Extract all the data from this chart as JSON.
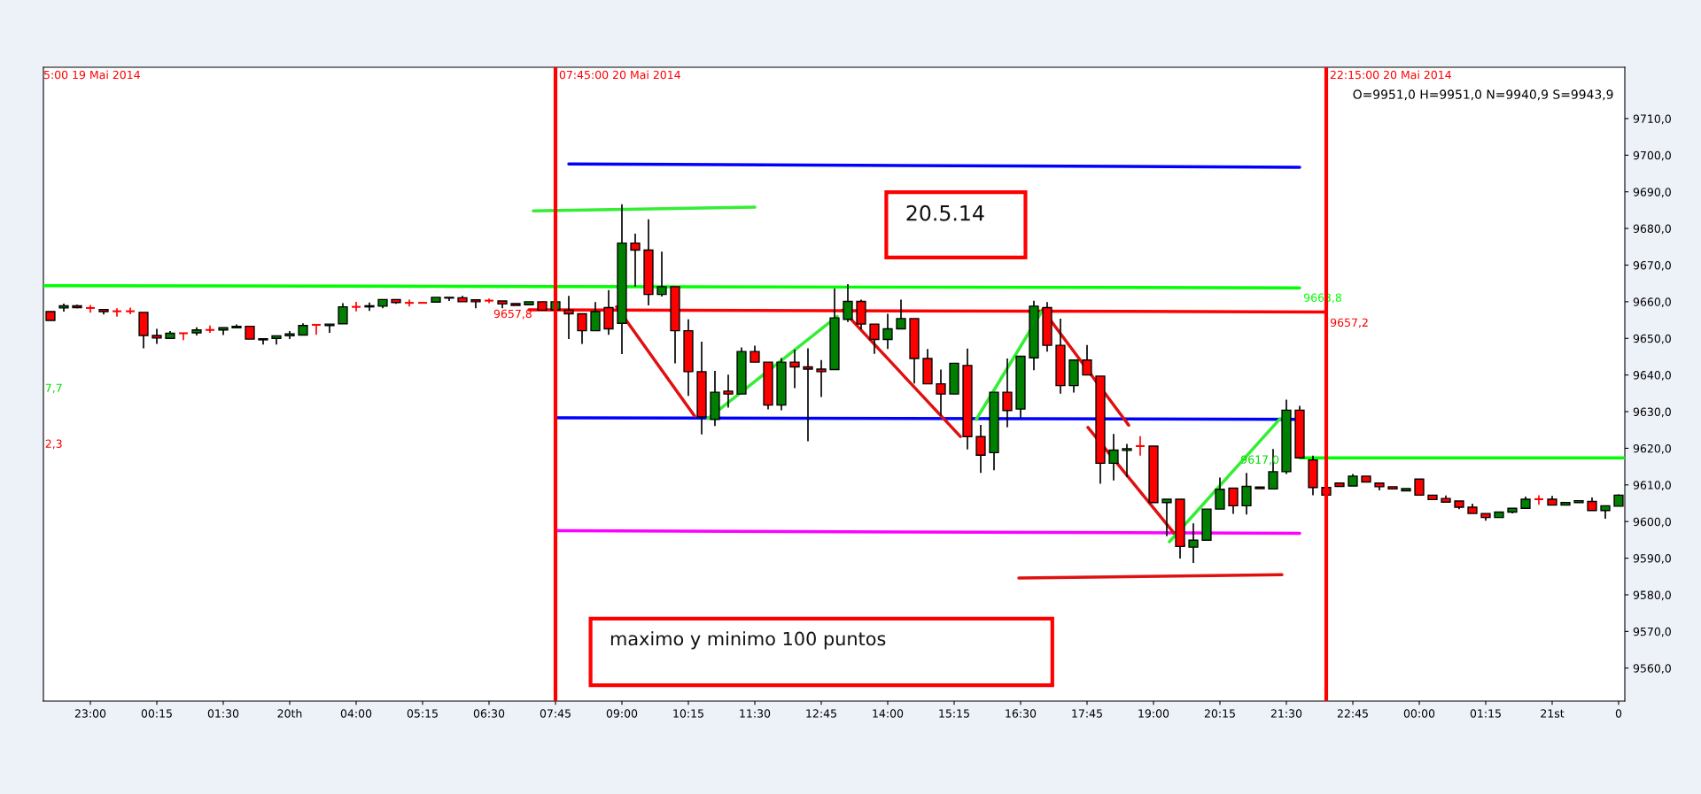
{
  "chart_data": {
    "type": "candlestick",
    "title": "O=9951,0 H=9951,0 N=9940,9 S=9943,9",
    "x": [
      "2014-05-19T22:15",
      "2014-05-19T22:30",
      "2014-05-19T22:45",
      "2014-05-19T23:00",
      "2014-05-19T23:15",
      "2014-05-19T23:30",
      "2014-05-19T23:45",
      "2014-05-20T00:00",
      "2014-05-20T00:15",
      "2014-05-20T00:30",
      "2014-05-20T00:45",
      "2014-05-20T01:00",
      "2014-05-20T01:15",
      "2014-05-20T01:30",
      "2014-05-20T01:45",
      "2014-05-20T02:00",
      "2014-05-20T02:15",
      "2014-05-20T02:30",
      "2014-05-20T02:45",
      "2014-05-20T03:00",
      "2014-05-20T03:15",
      "2014-05-20T03:30",
      "2014-05-20T03:45",
      "2014-05-20T04:00",
      "2014-05-20T04:15",
      "2014-05-20T04:30",
      "2014-05-20T04:45",
      "2014-05-20T05:00",
      "2014-05-20T05:15",
      "2014-05-20T05:30",
      "2014-05-20T05:45",
      "2014-05-20T06:00",
      "2014-05-20T06:15",
      "2014-05-20T06:30",
      "2014-05-20T06:45",
      "2014-05-20T07:00",
      "2014-05-20T07:15",
      "2014-05-20T07:30",
      "2014-05-20T07:45",
      "2014-05-20T08:00",
      "2014-05-20T08:15",
      "2014-05-20T08:30",
      "2014-05-20T08:45",
      "2014-05-20T09:00",
      "2014-05-20T09:15",
      "2014-05-20T09:30",
      "2014-05-20T09:45",
      "2014-05-20T10:00",
      "2014-05-20T10:15",
      "2014-05-20T10:30",
      "2014-05-20T10:45",
      "2014-05-20T11:00",
      "2014-05-20T11:15",
      "2014-05-20T11:30",
      "2014-05-20T11:45",
      "2014-05-20T12:00",
      "2014-05-20T12:15",
      "2014-05-20T12:30",
      "2014-05-20T12:45",
      "2014-05-20T13:00",
      "2014-05-20T13:15",
      "2014-05-20T13:30",
      "2014-05-20T13:45",
      "2014-05-20T14:00",
      "2014-05-20T14:15",
      "2014-05-20T14:30",
      "2014-05-20T14:45",
      "2014-05-20T15:00",
      "2014-05-20T15:15",
      "2014-05-20T15:30",
      "2014-05-20T15:45",
      "2014-05-20T16:00",
      "2014-05-20T16:15",
      "2014-05-20T16:30",
      "2014-05-20T16:45",
      "2014-05-20T17:00",
      "2014-05-20T17:15",
      "2014-05-20T17:30",
      "2014-05-20T17:45",
      "2014-05-20T18:00",
      "2014-05-20T18:15",
      "2014-05-20T18:30",
      "2014-05-20T18:45",
      "2014-05-20T19:00",
      "2014-05-20T19:15",
      "2014-05-20T19:30",
      "2014-05-20T19:45",
      "2014-05-20T20:00",
      "2014-05-20T20:15",
      "2014-05-20T20:30",
      "2014-05-20T20:45",
      "2014-05-20T21:00",
      "2014-05-20T21:15",
      "2014-05-20T21:30",
      "2014-05-20T21:45",
      "2014-05-20T22:00",
      "2014-05-20T22:15",
      "2014-05-20T22:30",
      "2014-05-20T22:45",
      "2014-05-20T23:00",
      "2014-05-20T23:15",
      "2014-05-20T23:30",
      "2014-05-20T23:45",
      "2014-05-21T00:00",
      "2014-05-21T00:15",
      "2014-05-21T00:30",
      "2014-05-21T00:45",
      "2014-05-21T01:00",
      "2014-05-21T01:15",
      "2014-05-21T01:30",
      "2014-05-21T01:45",
      "2014-05-21T02:00",
      "2014-05-21T02:15",
      "2014-05-21T02:30",
      "2014-05-21T02:45",
      "2014-05-21T03:00",
      "2014-05-21T03:15",
      "2014-05-21T03:30",
      "2014-05-21T03:45"
    ],
    "ohlc": [
      [
        9657.3,
        9657.3,
        9654.9,
        9654.9
      ],
      [
        9658.3,
        9659.5,
        9657.3,
        9658.9
      ],
      [
        9658.9,
        9659.2,
        9658.2,
        9658.4
      ],
      [
        9658.3,
        9659.1,
        9657.0,
        9658.3
      ],
      [
        9657.9,
        9657.9,
        9656.5,
        9657.3
      ],
      [
        9657.4,
        9658.2,
        9655.9,
        9657.4
      ],
      [
        9657.4,
        9658.4,
        9656.6,
        9657.4
      ],
      [
        9657.1,
        9657.1,
        9647.3,
        9650.8
      ],
      [
        9650.8,
        9652.6,
        9648.5,
        9650.1
      ],
      [
        9650.0,
        9652.0,
        9649.8,
        9651.4
      ],
      [
        9651.4,
        9651.4,
        9649.5,
        9651.4
      ],
      [
        9651.5,
        9653.0,
        9650.8,
        9652.3
      ],
      [
        9652.3,
        9653.5,
        9651.5,
        9652.3
      ],
      [
        9652.3,
        9652.9,
        9650.9,
        9652.9
      ],
      [
        9652.9,
        9653.8,
        9652.9,
        9653.3
      ],
      [
        9653.3,
        9653.3,
        9649.8,
        9649.8
      ],
      [
        9649.9,
        9649.9,
        9648.3,
        9649.6
      ],
      [
        9650.0,
        9650.7,
        9648.3,
        9650.7
      ],
      [
        9650.7,
        9652.0,
        9649.8,
        9651.2
      ],
      [
        9650.9,
        9654.1,
        9650.9,
        9653.5
      ],
      [
        9653.7,
        9653.7,
        9651.0,
        9653.7
      ],
      [
        9653.5,
        9653.9,
        9651.5,
        9653.9
      ],
      [
        9654.0,
        9659.6,
        9654.0,
        9658.6
      ],
      [
        9658.6,
        9660.0,
        9657.4,
        9658.6
      ],
      [
        9658.6,
        9659.8,
        9657.5,
        9658.9
      ],
      [
        9658.8,
        9660.6,
        9658.2,
        9660.6
      ],
      [
        9660.6,
        9660.6,
        9659.4,
        9659.8
      ],
      [
        9659.7,
        9660.6,
        9658.7,
        9659.7
      ],
      [
        9659.7,
        9659.7,
        9659.7,
        9659.7
      ],
      [
        9659.9,
        9661.2,
        9659.9,
        9661.2
      ],
      [
        9661.0,
        9661.2,
        9660.2,
        9661.2
      ],
      [
        9661.1,
        9661.6,
        9660.0,
        9660.0
      ],
      [
        9660.5,
        9660.5,
        9658.2,
        9660.0
      ],
      [
        9660.3,
        9660.9,
        9659.6,
        9660.3
      ],
      [
        9660.2,
        9660.2,
        9658.2,
        9659.4
      ],
      [
        9659.5,
        9659.5,
        9659.0,
        9659.0
      ],
      [
        9659.2,
        9660.0,
        9659.2,
        9660.0
      ],
      [
        9660.0,
        9660.0,
        9657.6,
        9657.7
      ],
      [
        9657.8,
        9660.0,
        9657.8,
        9660.0
      ],
      [
        9657.7,
        9661.6,
        9649.8,
        9656.7
      ],
      [
        9656.7,
        9656.7,
        9648.5,
        9652.1
      ],
      [
        9652.1,
        9659.9,
        9652.1,
        9657.3
      ],
      [
        9658.4,
        9663.2,
        9651.0,
        9652.6
      ],
      [
        9654.1,
        9686.6,
        9645.7,
        9676.0
      ],
      [
        9676.0,
        9678.6,
        9664.2,
        9674.1
      ],
      [
        9674.1,
        9682.5,
        9659.0,
        9662.0
      ],
      [
        9662.0,
        9673.7,
        9661.4,
        9664.1
      ],
      [
        9664.1,
        9664.1,
        9643.2,
        9652.1
      ],
      [
        9652.1,
        9655.2,
        9634.3,
        9640.9
      ],
      [
        9640.9,
        9649.1,
        9623.8,
        9628.6
      ],
      [
        9627.9,
        9641.1,
        9626.1,
        9635.3
      ],
      [
        9635.6,
        9640.1,
        9631.1,
        9634.8
      ],
      [
        9634.8,
        9647.5,
        9634.8,
        9646.4
      ],
      [
        9646.4,
        9648.0,
        9643.5,
        9643.5
      ],
      [
        9643.5,
        9643.5,
        9630.6,
        9631.8
      ],
      [
        9631.8,
        9644.6,
        9630.4,
        9643.5
      ],
      [
        9643.5,
        9646.9,
        9636.4,
        9642.2
      ],
      [
        9642.2,
        9647.3,
        9621.9,
        9641.6
      ],
      [
        9641.6,
        9644.1,
        9634.0,
        9640.9
      ],
      [
        9641.5,
        9663.6,
        9641.5,
        9655.6
      ],
      [
        9655.2,
        9664.8,
        9654.5,
        9660.1
      ],
      [
        9660.1,
        9660.6,
        9652.5,
        9653.9
      ],
      [
        9653.9,
        9653.9,
        9645.8,
        9649.7
      ],
      [
        9649.7,
        9656.7,
        9647.1,
        9652.6
      ],
      [
        9652.6,
        9660.6,
        9652.6,
        9655.4
      ],
      [
        9655.4,
        9655.4,
        9637.7,
        9644.5
      ],
      [
        9644.5,
        9647.1,
        9637.6,
        9637.6
      ],
      [
        9637.6,
        9641.5,
        9628.9,
        9634.8
      ],
      [
        9634.8,
        9643.2,
        9634.8,
        9643.2
      ],
      [
        9642.6,
        9647.2,
        9619.7,
        9623.2
      ],
      [
        9623.2,
        9626.4,
        9613.3,
        9618.1
      ],
      [
        9618.8,
        9635.3,
        9614.0,
        9635.3
      ],
      [
        9635.3,
        9644.5,
        9625.7,
        9630.3
      ],
      [
        9630.7,
        9645.1,
        9628.3,
        9645.1
      ],
      [
        9644.7,
        9660.3,
        9641.3,
        9658.8
      ],
      [
        9658.4,
        9659.9,
        9646.4,
        9648.1
      ],
      [
        9648.1,
        9655.4,
        9634.9,
        9637.1
      ],
      [
        9637.1,
        9644.1,
        9635.2,
        9644.1
      ],
      [
        9644.1,
        9648.2,
        9640.0,
        9640.0
      ],
      [
        9639.7,
        9639.7,
        9610.3,
        9615.9
      ],
      [
        9615.9,
        9623.9,
        9611.2,
        9619.5
      ],
      [
        9619.4,
        9621.2,
        9612.1,
        9619.9
      ],
      [
        9620.6,
        9623.3,
        9618.0,
        9620.6
      ],
      [
        9620.6,
        9620.6,
        9605.2,
        9605.2
      ],
      [
        9605.2,
        9606.1,
        9596.0,
        9606.1
      ],
      [
        9606.1,
        9606.1,
        9589.9,
        9593.2
      ],
      [
        9593.0,
        9599.5,
        9588.7,
        9594.9
      ],
      [
        9594.9,
        9603.4,
        9594.9,
        9603.4
      ],
      [
        9603.4,
        9612.0,
        9603.4,
        9608.8
      ],
      [
        9609.1,
        9609.1,
        9602.1,
        9604.3
      ],
      [
        9604.3,
        9613.3,
        9601.9,
        9609.6
      ],
      [
        9609.4,
        9609.4,
        9609.0,
        9609.0
      ],
      [
        9608.9,
        9619.8,
        9608.9,
        9613.6
      ],
      [
        9613.6,
        9633.3,
        9613.0,
        9630.4
      ],
      [
        9630.4,
        9631.6,
        9617.4,
        9617.4
      ],
      [
        9616.8,
        9618.0,
        9607.2,
        9609.3
      ],
      [
        9609.3,
        9609.3,
        9607.2,
        9607.2
      ],
      [
        9610.5,
        9610.5,
        9609.6,
        9609.6
      ],
      [
        9609.7,
        9613.0,
        9609.7,
        9612.4
      ],
      [
        9612.4,
        9612.4,
        9610.8,
        9610.8
      ],
      [
        9610.5,
        9610.5,
        9608.5,
        9609.5
      ],
      [
        9609.5,
        9609.5,
        9608.9,
        9608.9
      ],
      [
        9608.4,
        9609.0,
        9608.4,
        9609.0
      ],
      [
        9611.6,
        9611.6,
        9607.2,
        9607.2
      ],
      [
        9607.2,
        9607.2,
        9606.0,
        9606.0
      ],
      [
        9606.3,
        9607.1,
        9605.3,
        9605.3
      ],
      [
        9605.6,
        9605.6,
        9603.4,
        9603.9
      ],
      [
        9603.9,
        9604.9,
        9602.2,
        9602.2
      ],
      [
        9602.2,
        9602.2,
        9600.2,
        9601.1
      ],
      [
        9601.1,
        9602.6,
        9601.1,
        9602.6
      ],
      [
        9602.6,
        9603.6,
        9602.2,
        9603.6
      ],
      [
        9603.6,
        9606.8,
        9603.6,
        9606.1
      ],
      [
        9606.1,
        9607.2,
        9604.6,
        9606.1
      ],
      [
        9606.1,
        9607.0,
        9604.5,
        9604.5
      ],
      [
        9604.5,
        9605.2,
        9604.5,
        9605.2
      ],
      [
        9605.2,
        9605.7,
        9605.2,
        9605.7
      ],
      [
        9605.5,
        9606.6,
        9603.0,
        9603.0
      ],
      [
        9603.0,
        9604.3,
        9600.8,
        9604.3
      ],
      [
        9604.2,
        9607.4,
        9604.2,
        9607.2
      ]
    ],
    "colors": [
      "#ff0000",
      "#008000",
      "#ff0000",
      "#ff0000",
      "#ff0000",
      "#ff0000",
      "#ff0000",
      "#ff0000",
      "#ff0000",
      "#008000",
      "#ff0000",
      "#008000",
      "#ff0000",
      "#008000",
      "#008000",
      "#ff0000",
      "#ff0000",
      "#008000",
      "#008000",
      "#008000",
      "#ff0000",
      "#008000",
      "#008000",
      "#ff0000",
      "#008000",
      "#008000",
      "#ff0000",
      "#ff0000",
      "#ff0000",
      "#008000",
      "#008000",
      "#ff0000",
      "#ff0000",
      "#ff0000",
      "#ff0000",
      "#ff0000",
      "#008000",
      "#ff0000",
      "#008000",
      "#ff0000",
      "#ff0000",
      "#008000",
      "#ff0000",
      "#008000",
      "#ff0000",
      "#ff0000",
      "#008000",
      "#ff0000",
      "#ff0000",
      "#ff0000",
      "#008000",
      "#ff0000",
      "#008000",
      "#ff0000",
      "#ff0000",
      "#008000",
      "#ff0000",
      "#ff0000",
      "#ff0000",
      "#008000",
      "#008000",
      "#ff0000",
      "#ff0000",
      "#008000",
      "#008000",
      "#ff0000",
      "#ff0000",
      "#ff0000",
      "#008000",
      "#ff0000",
      "#ff0000",
      "#008000",
      "#ff0000",
      "#008000",
      "#008000",
      "#ff0000",
      "#ff0000",
      "#008000",
      "#ff0000",
      "#ff0000",
      "#008000",
      "#008000",
      "#ff0000",
      "#ff0000",
      "#008000",
      "#ff0000",
      "#008000",
      "#008000",
      "#008000",
      "#ff0000",
      "#008000",
      "#ff0000",
      "#008000",
      "#008000",
      "#ff0000",
      "#ff0000",
      "#ff0000",
      "#ff0000",
      "#008000",
      "#ff0000",
      "#ff0000",
      "#ff0000",
      "#008000",
      "#ff0000",
      "#ff0000",
      "#ff0000",
      "#ff0000",
      "#ff0000",
      "#ff0000",
      "#008000",
      "#008000",
      "#008000",
      "#ff0000",
      "#ff0000",
      "#008000",
      "#008000",
      "#ff0000",
      "#008000",
      "#008000"
    ],
    "series": [
      {
        "type": "line",
        "color": "#0000ff",
        "x": [
          "2014-05-20T08:00",
          "2014-05-20T21:45"
        ],
        "values": [
          9697.6,
          9696.7
        ]
      },
      {
        "type": "line",
        "color": "#00ff00",
        "x": [
          "2014-05-19T22:07",
          "2014-05-20T21:45"
        ],
        "values": [
          9664.4,
          9663.8
        ]
      },
      {
        "type": "line",
        "color": "#ff0000",
        "x": [
          "2014-05-20T07:15",
          "2014-05-20T22:15"
        ],
        "values": [
          9657.8,
          9657.2
        ]
      },
      {
        "type": "line",
        "color": "#0000ff",
        "x": [
          "2014-05-20T07:45",
          "2014-05-20T21:39"
        ],
        "values": [
          9628.3,
          9627.9
        ]
      },
      {
        "type": "line",
        "color": "#ff00ff",
        "x": [
          "2014-05-20T07:45",
          "2014-05-20T21:45"
        ],
        "values": [
          9597.5,
          9596.8
        ]
      },
      {
        "type": "line",
        "color": "#00ff00",
        "x": [
          "2014-05-20T21:45",
          "2014-05-21T03:52"
        ],
        "values": [
          9617.4,
          9617.4
        ]
      },
      {
        "type": "line",
        "color": "#33ee33",
        "x": [
          "2014-05-20T07:20",
          "2014-05-20T11:30"
        ],
        "values": [
          9684.8,
          9685.8
        ]
      },
      {
        "type": "line",
        "color": "#e01010",
        "x": [
          "2014-05-20T08:54",
          "2014-05-20T10:22"
        ],
        "values": [
          9658.6,
          9628.8
        ]
      },
      {
        "type": "line",
        "color": "#33ee33",
        "x": [
          "2014-05-20T10:37",
          "2014-05-20T13:03"
        ],
        "values": [
          9628.1,
          9656.0
        ]
      },
      {
        "type": "line",
        "color": "#e01010",
        "x": [
          "2014-05-20T13:09",
          "2014-05-20T15:22"
        ],
        "values": [
          9657.7,
          9623.2
        ]
      },
      {
        "type": "line",
        "color": "#33ee33",
        "x": [
          "2014-05-20T15:40",
          "2014-05-20T16:55"
        ],
        "values": [
          9627.9,
          9657.8
        ]
      },
      {
        "type": "line",
        "color": "#e01010",
        "x": [
          "2014-05-20T16:55",
          "2014-05-20T18:32"
        ],
        "values": [
          9657.8,
          9626.3
        ]
      },
      {
        "type": "line",
        "color": "#e01010",
        "x": [
          "2014-05-20T17:46",
          "2014-05-20T19:34"
        ],
        "values": [
          9625.7,
          9593.6
        ]
      },
      {
        "type": "line",
        "color": "#33ee33",
        "x": [
          "2014-05-20T19:18",
          "2014-05-20T21:23"
        ],
        "values": [
          9594.5,
          9628.1
        ]
      },
      {
        "type": "line",
        "color": "#e01010",
        "x": [
          "2014-05-20T16:28",
          "2014-05-20T21:25"
        ],
        "values": [
          9584.6,
          9585.5
        ]
      }
    ],
    "ref_lines": [
      {
        "axis": "x",
        "value": "2014-05-20T07:45",
        "label": "07:45:00 20 Mai 2014",
        "color": "#ff0000"
      },
      {
        "axis": "x",
        "value": "2014-05-20T22:15",
        "label": "22:15:00 20 Mai 2014",
        "color": "#ff0000"
      }
    ],
    "annotations": [
      "5:00 19 Mai 2014",
      "20.5.14",
      "maximo y minimo 100 puntos",
      "9657,8",
      "9617,0",
      "7,7",
      "2,3",
      {
        "text": "9663,8",
        "x": "2014-05-20T21:45",
        "y": 9664.0
      },
      {
        "text": "9657,2",
        "x": "2014-05-20T22:15",
        "y": 9657.2
      }
    ],
    "xlim": [
      "2014-05-19T22:07",
      "2014-05-21T03:52"
    ],
    "xticks": [
      {
        "value": "2014-05-19T23:00",
        "label": "23:00"
      },
      {
        "value": "2014-05-20T00:15",
        "label": "00:15"
      },
      {
        "value": "2014-05-20T01:30",
        "label": "01:30"
      },
      {
        "value": "2014-05-20T02:45",
        "label": "20th"
      },
      {
        "value": "2014-05-20T04:00",
        "label": "04:00"
      },
      {
        "value": "2014-05-20T05:15",
        "label": "05:15"
      },
      {
        "value": "2014-05-20T06:30",
        "label": "06:30"
      },
      {
        "value": "2014-05-20T07:45",
        "label": "07:45"
      },
      {
        "value": "2014-05-20T09:00",
        "label": "09:00"
      },
      {
        "value": "2014-05-20T10:15",
        "label": "10:15"
      },
      {
        "value": "2014-05-20T11:30",
        "label": "11:30"
      },
      {
        "value": "2014-05-20T12:45",
        "label": "12:45"
      },
      {
        "value": "2014-05-20T14:00",
        "label": "14:00"
      },
      {
        "value": "2014-05-20T15:15",
        "label": "15:15"
      },
      {
        "value": "2014-05-20T16:30",
        "label": "16:30"
      },
      {
        "value": "2014-05-20T17:45",
        "label": "17:45"
      },
      {
        "value": "2014-05-20T19:00",
        "label": "19:00"
      },
      {
        "value": "2014-05-20T20:15",
        "label": "20:15"
      },
      {
        "value": "2014-05-20T21:30",
        "label": "21:30"
      },
      {
        "value": "2014-05-20T22:45",
        "label": "22:45"
      },
      {
        "value": "2014-05-21T00:00",
        "label": "00:00"
      },
      {
        "value": "2014-05-21T01:15",
        "label": "01:15"
      },
      {
        "value": "2014-05-21T02:30",
        "label": "21st"
      },
      {
        "value": "2014-05-21T03:45",
        "label": "0"
      }
    ],
    "ylim": [
      9551,
      9724
    ],
    "yticks": [
      {
        "value": 9560,
        "label": "9560,0"
      },
      {
        "value": 9570,
        "label": "9570,0"
      },
      {
        "value": 9580,
        "label": "9580,0"
      },
      {
        "value": 9590,
        "label": "9590,0"
      },
      {
        "value": 9600,
        "label": "9600,0"
      },
      {
        "value": 9610,
        "label": "9610,0"
      },
      {
        "value": 9620,
        "label": "9620,0"
      },
      {
        "value": 9630,
        "label": "9630,0"
      },
      {
        "value": 9640,
        "label": "9640,0"
      },
      {
        "value": 9650,
        "label": "9650,0"
      },
      {
        "value": 9660,
        "label": "9660,0"
      },
      {
        "value": 9670,
        "label": "9670,0"
      },
      {
        "value": 9680,
        "label": "9680,0"
      },
      {
        "value": 9690,
        "label": "9690,0"
      },
      {
        "value": 9700,
        "label": "9700,0"
      },
      {
        "value": 9710,
        "label": "9710,0"
      }
    ],
    "grid": false,
    "legend": false
  }
}
